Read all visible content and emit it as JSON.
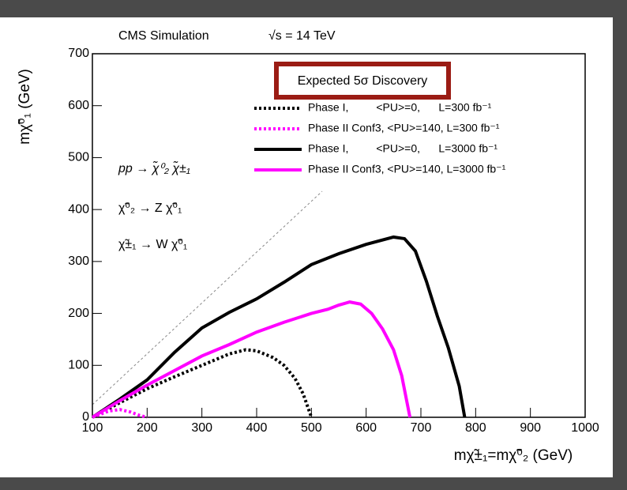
{
  "chart_data": {
    "type": "line",
    "title": "CMS Simulation",
    "subtitle": "√s = 14 TeV",
    "legend_title": "Expected 5σ Discovery",
    "x_label": "mχ̃±₁=mχ̃⁰₂ (GeV)",
    "y_label": "mχ̃⁰₁ (GeV)",
    "annotations": [
      "pp → χ̃⁰₂ χ̃±₁",
      "χ̃⁰₂ → Z χ̃⁰₁",
      "χ̃±₁ → W χ̃⁰₁"
    ],
    "xlim": [
      100,
      1000
    ],
    "ylim": [
      0,
      700
    ],
    "xticks": [
      100,
      200,
      300,
      400,
      500,
      600,
      700,
      800,
      900,
      1000
    ],
    "yticks": [
      0,
      100,
      200,
      300,
      400,
      500,
      600,
      700
    ],
    "series": [
      {
        "name": "Phase I,         <PU>=0,      L=300 fb⁻¹",
        "color": "#000000",
        "dash": true,
        "x": [
          100,
          150,
          200,
          250,
          300,
          350,
          380,
          400,
          430,
          450,
          470,
          485,
          500
        ],
        "values": [
          0,
          28,
          55,
          78,
          100,
          122,
          130,
          128,
          115,
          100,
          75,
          45,
          0
        ]
      },
      {
        "name": "Phase II Conf3, <PU>=140, L=300 fb⁻¹",
        "color": "#ff00ff",
        "dash": true,
        "x": [
          100,
          130,
          150,
          170,
          185,
          200
        ],
        "values": [
          0,
          12,
          15,
          10,
          4,
          0
        ]
      },
      {
        "name": "Phase I,         <PU>=0,      L=3000 fb⁻¹",
        "color": "#000000",
        "dash": false,
        "x": [
          100,
          150,
          200,
          250,
          300,
          350,
          400,
          450,
          500,
          550,
          600,
          650,
          670,
          690,
          710,
          730,
          750,
          770,
          780
        ],
        "values": [
          0,
          35,
          72,
          125,
          172,
          202,
          228,
          260,
          294,
          315,
          333,
          347,
          344,
          320,
          262,
          195,
          134,
          60,
          0
        ]
      },
      {
        "name": "Phase II Conf3, <PU>=140, L=3000 fb⁻¹",
        "color": "#ff00ff",
        "dash": false,
        "x": [
          100,
          150,
          200,
          250,
          300,
          350,
          400,
          450,
          500,
          530,
          550,
          570,
          590,
          610,
          630,
          650,
          665,
          680
        ],
        "values": [
          0,
          32,
          62,
          90,
          118,
          140,
          164,
          183,
          200,
          208,
          216,
          222,
          218,
          200,
          170,
          130,
          80,
          0
        ]
      }
    ]
  }
}
